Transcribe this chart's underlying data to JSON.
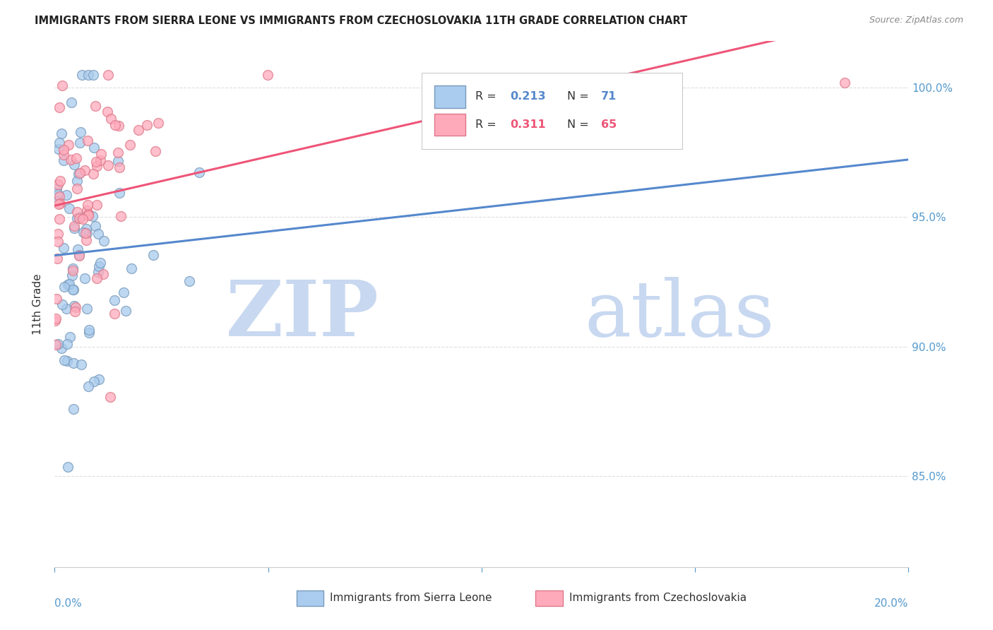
{
  "title": "IMMIGRANTS FROM SIERRA LEONE VS IMMIGRANTS FROM CZECHOSLOVAKIA 11TH GRADE CORRELATION CHART",
  "source": "Source: ZipAtlas.com",
  "ylabel": "11th Grade",
  "yticks": [
    "100.0%",
    "95.0%",
    "90.0%",
    "85.0%"
  ],
  "ytick_vals": [
    1.0,
    0.95,
    0.9,
    0.85
  ],
  "xlim": [
    0.0,
    0.2
  ],
  "ylim": [
    0.815,
    1.018
  ],
  "legend_blue_r": "0.213",
  "legend_blue_n": "71",
  "legend_pink_r": "0.311",
  "legend_pink_n": "65",
  "blue_line_color": "#5588CC",
  "pink_line_color": "#EE5577",
  "blue_scatter_face": "#AACCEE",
  "blue_scatter_edge": "#7799BB",
  "pink_scatter_face": "#FFAABB",
  "pink_scatter_edge": "#DD7788",
  "watermark_zip_color": "#C8D8F0",
  "watermark_atlas_color": "#C8D8F0",
  "grid_color": "#DDDDDD",
  "xtick_color": "#5599CC",
  "ytick_color": "#5599CC"
}
